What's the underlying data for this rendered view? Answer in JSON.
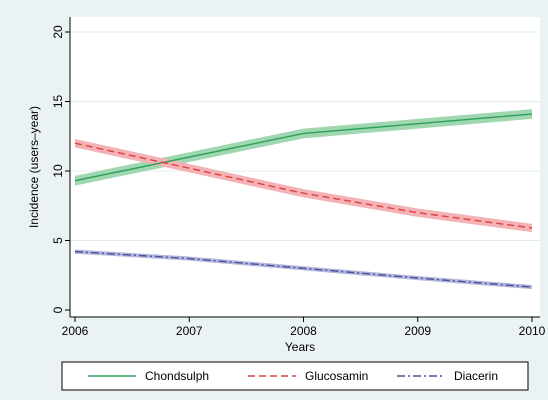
{
  "chart_data": {
    "type": "line",
    "title": "",
    "xlabel": "Years",
    "ylabel": "Incidence (users–year)",
    "x": [
      2006,
      2007,
      2008,
      2009,
      2010
    ],
    "xlim": [
      2006,
      2010
    ],
    "ylim": [
      0,
      20
    ],
    "xticks": [
      "2006",
      "2007",
      "2008",
      "2009",
      "2010"
    ],
    "yticks": [
      "0",
      "5",
      "10",
      "15",
      "20"
    ],
    "grid": true,
    "legend_position": "bottom",
    "series": [
      {
        "name": "Chondsulph",
        "values": [
          9.3,
          11.0,
          12.7,
          13.4,
          14.1
        ],
        "ci_width": 0.35,
        "color": "#2e9e5b",
        "band_color": "#9fd8b0",
        "dash": "solid"
      },
      {
        "name": "Glucosamin",
        "values": [
          12.0,
          10.2,
          8.4,
          7.0,
          5.9
        ],
        "ci_width": 0.3,
        "color": "#e0403f",
        "band_color": "#f3b2b5",
        "dash": "dashed"
      },
      {
        "name": "Diacerin",
        "values": [
          4.2,
          3.7,
          3.0,
          2.3,
          1.65
        ],
        "ci_width": 0.15,
        "color": "#4b4f9c",
        "band_color": "#b3b6dd",
        "dash": "dashdot"
      }
    ]
  }
}
